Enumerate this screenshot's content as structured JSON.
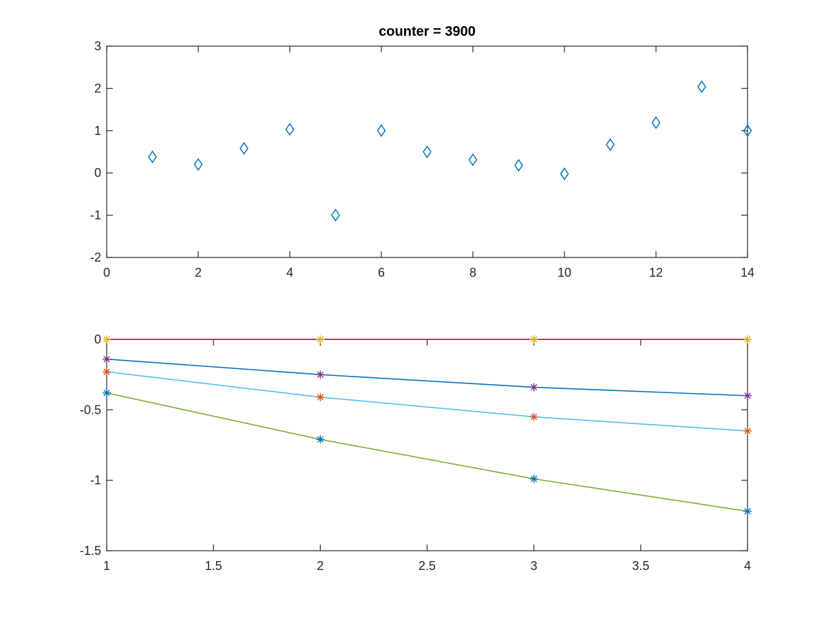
{
  "chart_data": [
    {
      "type": "scatter",
      "title": "counter = 3900",
      "xlabel": "",
      "ylabel": "",
      "xlim": [
        0,
        14
      ],
      "ylim": [
        -2,
        3
      ],
      "xticks": [
        "0",
        "2",
        "4",
        "6",
        "8",
        "10",
        "12",
        "14"
      ],
      "yticks": [
        "-2",
        "-1",
        "0",
        "1",
        "2",
        "3"
      ],
      "grid": false,
      "marker": "diamond",
      "series": [
        {
          "color": "#0072BD",
          "x": [
            1,
            2,
            3,
            4,
            5,
            6,
            7,
            8,
            9,
            10,
            11,
            12,
            13,
            14
          ],
          "y": [
            0.38,
            0.2,
            0.58,
            1.03,
            -1.0,
            1.0,
            0.5,
            0.31,
            0.18,
            -0.02,
            0.67,
            1.19,
            2.04,
            1.0
          ]
        }
      ]
    },
    {
      "type": "line",
      "title": "",
      "xlabel": "",
      "ylabel": "",
      "xlim": [
        1,
        4
      ],
      "ylim": [
        -1.5,
        0
      ],
      "xticks": [
        "1",
        "1.5",
        "2",
        "2.5",
        "3",
        "3.5",
        "4"
      ],
      "yticks": [
        "-1.5",
        "-1",
        "-0.5",
        "0"
      ],
      "grid": false,
      "x": [
        1,
        2,
        3,
        4
      ],
      "series": [
        {
          "color": "#A2142F",
          "marker_color": "#EDB120",
          "values": [
            0,
            0,
            0,
            0
          ]
        },
        {
          "color": "#0072BD",
          "marker_color": "#7E2F8E",
          "values": [
            -0.14,
            -0.25,
            -0.34,
            -0.4
          ]
        },
        {
          "color": "#4DBEEE",
          "marker_color": "#D95319",
          "values": [
            -0.23,
            -0.41,
            -0.55,
            -0.65
          ]
        },
        {
          "color": "#77AC30",
          "marker_color": "#0072BD",
          "values": [
            -0.38,
            -0.71,
            -0.99,
            -1.22
          ]
        }
      ]
    }
  ]
}
